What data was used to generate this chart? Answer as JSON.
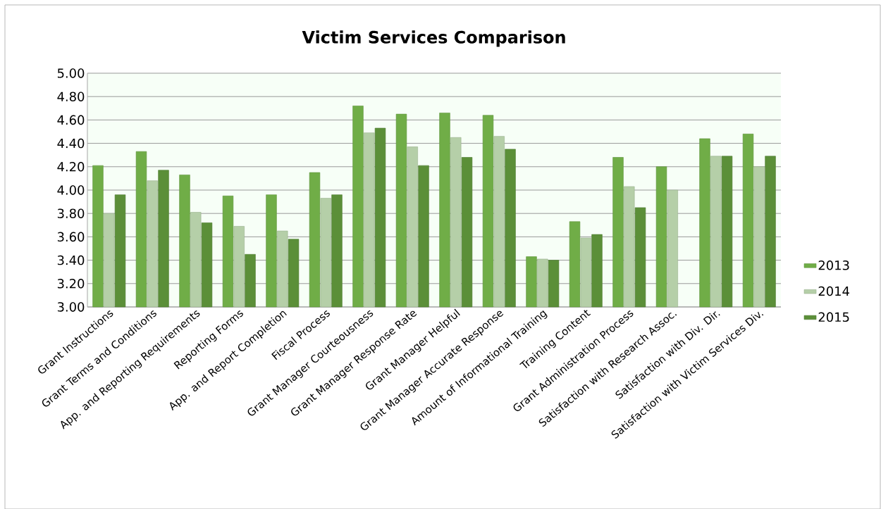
{
  "chart_data": {
    "type": "bar",
    "title": "Victim Services Comparison",
    "categories": [
      "Grant Instructions",
      "Grant Terms and Conditions",
      "App. and Reporting Requirements",
      "Reporting Forms",
      "App. and Report Completion",
      "Fiscal Process",
      "Grant Manager Courteousness",
      "Grant Manager Response Rate",
      "Grant Manager Helpful",
      "Grant Manager Accurate Response",
      "Amount of Informational Training",
      "Training Content",
      "Grant Administration Process",
      "Satisfaction with Research Assoc.",
      "Satisfaction with Div. Dir.",
      "Satisfaction with Victim Services Div."
    ],
    "series": [
      {
        "name": "2013",
        "color": "#70ad47",
        "values": [
          4.21,
          4.33,
          4.13,
          3.95,
          3.96,
          4.15,
          4.72,
          4.65,
          4.66,
          4.64,
          3.43,
          3.73,
          4.28,
          4.2,
          4.44,
          4.48
        ]
      },
      {
        "name": "2014",
        "color": "#b5cfa8",
        "values": [
          3.8,
          4.08,
          3.81,
          3.69,
          3.65,
          3.93,
          4.49,
          4.37,
          4.45,
          4.46,
          3.41,
          3.59,
          4.03,
          4.0,
          4.29,
          4.2
        ]
      },
      {
        "name": "2015",
        "color": "#5b8f38",
        "values": [
          3.96,
          4.17,
          3.72,
          3.45,
          3.58,
          3.96,
          4.53,
          4.21,
          4.28,
          4.35,
          3.4,
          3.62,
          3.85,
          null,
          4.29,
          4.29
        ]
      }
    ],
    "ylim": [
      3.0,
      5.0
    ],
    "yticks": [
      {
        "value": 3.0,
        "label": "3.00"
      },
      {
        "value": 3.2,
        "label": "3.20"
      },
      {
        "value": 3.4,
        "label": "3.40"
      },
      {
        "value": 3.6,
        "label": "3.60"
      },
      {
        "value": 3.8,
        "label": "3.80"
      },
      {
        "value": 4.0,
        "label": "4.00"
      },
      {
        "value": 4.2,
        "label": "4.20"
      },
      {
        "value": 4.4,
        "label": "4.40"
      },
      {
        "value": 4.6,
        "label": "4.60"
      },
      {
        "value": 4.8,
        "label": "4.80"
      },
      {
        "value": 5.0,
        "label": "5.00"
      }
    ],
    "grid": "y",
    "legend": "right"
  }
}
